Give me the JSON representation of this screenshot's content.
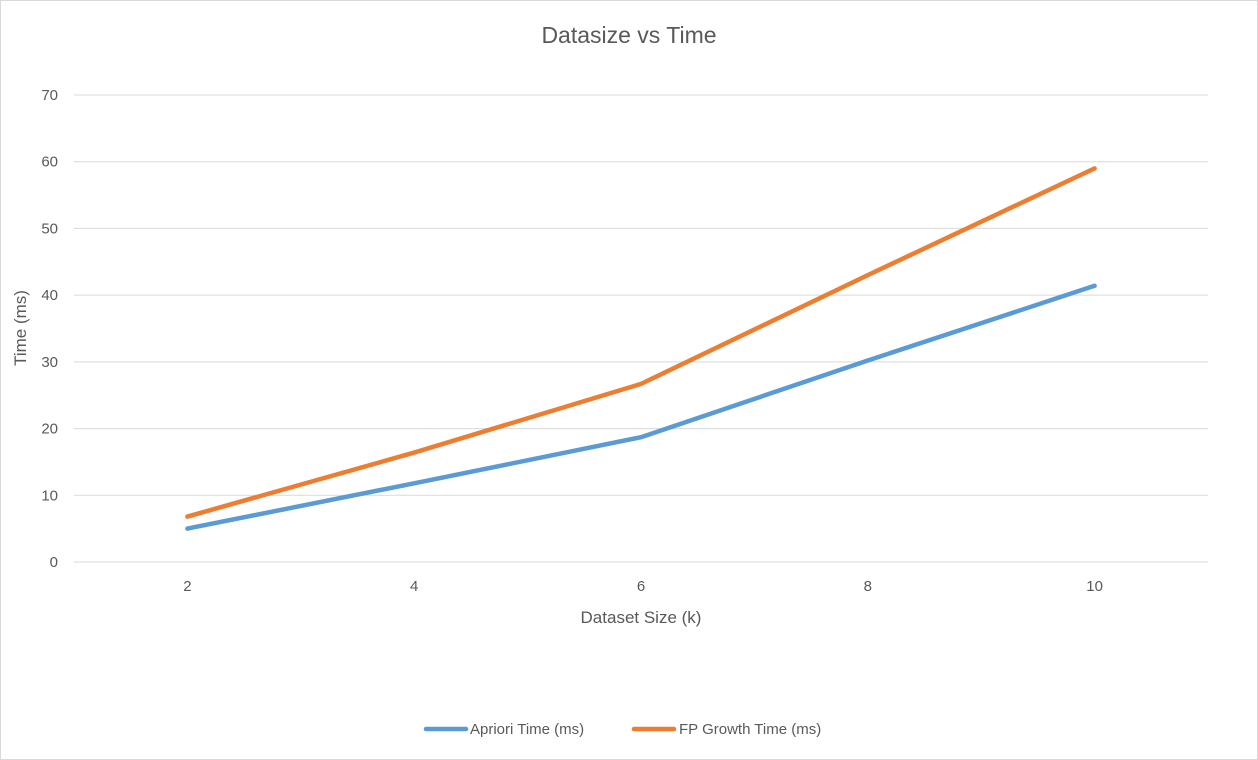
{
  "chart_data": {
    "type": "line",
    "title": "Datasize vs Time",
    "xlabel": "Dataset Size (k)",
    "ylabel": "Time (ms)",
    "categories": [
      "2",
      "4",
      "6",
      "8",
      "10"
    ],
    "ylim": [
      0,
      70
    ],
    "yticks": [
      "0",
      "10",
      "20",
      "30",
      "40",
      "50",
      "60",
      "70"
    ],
    "grid": true,
    "legend_position": "bottom",
    "series": [
      {
        "name": "Apriori Time (ms)",
        "color": "#5B9BD5",
        "values": [
          5,
          11.8,
          18.7,
          30.2,
          41.4
        ]
      },
      {
        "name": "FP Growth Time (ms)",
        "color": "#ED7D31",
        "values": [
          6.8,
          16.4,
          26.7,
          43.0,
          59.0
        ]
      }
    ]
  }
}
